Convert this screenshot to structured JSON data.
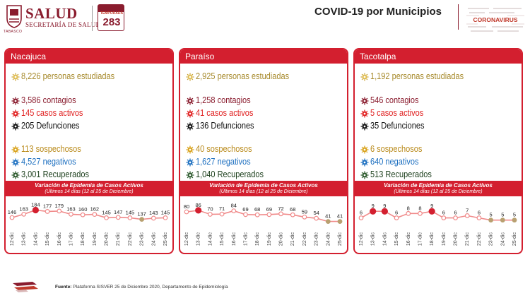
{
  "header": {
    "logo_title": "SALUD",
    "logo_subtitle": "SECRETARÍA DE SALUD",
    "logo_caption": "TABASCO",
    "calendar_word": "TEMPORADA",
    "calendar_number": "283",
    "page_title": "COVID-19 por Municipios",
    "cloud_word": "CORONAVIRUS"
  },
  "colors": {
    "panel_red": "#d31f2f",
    "brand_maroon": "#8a1c2e",
    "line_pink": "#f08a8a",
    "point_highlight": "#d31f2f",
    "point_recent": "#b8a070"
  },
  "chart_band": {
    "title": "Variación de Epidemia de Casos Activos",
    "subtitle": "(Últimos 14 días (12 al 25 de Diciembre)"
  },
  "panels": [
    {
      "name": "Nacajuca",
      "estudiadas": "8,226 personas estudiadas",
      "contagios": "3,586 contagios",
      "activos": "145 casos activos",
      "defunciones": "205 Defunciones",
      "sospechosos": "113 sospechosos",
      "negativos": "4,527 negativos",
      "recuperados": "3,001 Recuperados"
    },
    {
      "name": "Paraíso",
      "estudiadas": "2,925 personas estudiadas",
      "contagios": "1,258 contagios",
      "activos": "41 casos activos",
      "defunciones": "136 Defunciones",
      "sospechosos": "40 sospechosos",
      "negativos": "1,627 negativos",
      "recuperados": "1,040 Recuperados"
    },
    {
      "name": "Tacotalpa",
      "estudiadas": "1,192 personas estudiadas",
      "contagios": "546 contagios",
      "activos": "5 casos activos",
      "defunciones": "35 Defunciones",
      "sospechosos": "6 sospechosos",
      "negativos": "640 negativos",
      "recuperados": "513 Recuperados"
    }
  ],
  "chart_data": [
    {
      "type": "line",
      "title": "Variación de Epidemia de Casos Activos",
      "subtitle": "(Últimos 14 días (12 al 25 de Diciembre)",
      "categories": [
        "12-dic",
        "13-dic",
        "14-dic",
        "15-dic",
        "16-dic",
        "17-dic",
        "18-dic",
        "19-dic",
        "20-dic",
        "21-dic",
        "22-dic",
        "23-dic",
        "24-dic",
        "25-dic"
      ],
      "series": [
        {
          "values": [
            146,
            163,
            184,
            177,
            179,
            163,
            160,
            162,
            145,
            147,
            145,
            137,
            143,
            145
          ]
        }
      ],
      "ylim": [
        100,
        200
      ],
      "grid": false,
      "highlight_index": 2,
      "recent_indices": [
        11
      ]
    },
    {
      "type": "line",
      "title": "Variación de Epidemia de Casos Activos",
      "subtitle": "(Últimos 14 días (12 al 25 de Diciembre)",
      "categories": [
        "12-dic",
        "13-dic",
        "14-dic",
        "15-dic",
        "16-dic",
        "17-dic",
        "18-dic",
        "19-dic",
        "20-dic",
        "21-dic",
        "22-dic",
        "23-dic",
        "24-dic",
        "25-dic"
      ],
      "series": [
        {
          "values": [
            80,
            86,
            70,
            71,
            84,
            69,
            68,
            69,
            72,
            68,
            59,
            54,
            41,
            41
          ]
        }
      ],
      "ylim": [
        20,
        100
      ],
      "grid": false,
      "highlight_index": 1,
      "recent_indices": [
        12,
        13
      ]
    },
    {
      "type": "line",
      "title": "Variación de Epidemia de Casos Activos",
      "subtitle": "(Últimos 14 días (12 al 25 de Diciembre)",
      "categories": [
        "12-dic",
        "13-dic",
        "14-dic",
        "15-dic",
        "16-dic",
        "17-dic",
        "18-dic",
        "19-dic",
        "20-dic",
        "21-dic",
        "22-dic",
        "23-dic",
        "24-dic",
        "25-dic"
      ],
      "series": [
        {
          "values": [
            6,
            9,
            9,
            6,
            8,
            8,
            9,
            6,
            6,
            7,
            6,
            5,
            5,
            5
          ]
        }
      ],
      "ylim": [
        2,
        11
      ],
      "grid": false,
      "highlight_index": 1,
      "highlight_indices": [
        1,
        2,
        6
      ],
      "recent_indices": [
        11,
        12,
        13
      ]
    }
  ],
  "footer": {
    "label": "Fuente:",
    "source": "Plataforma SISVER 25 de Diciembre 2020, Departamento de Epidemiología"
  }
}
